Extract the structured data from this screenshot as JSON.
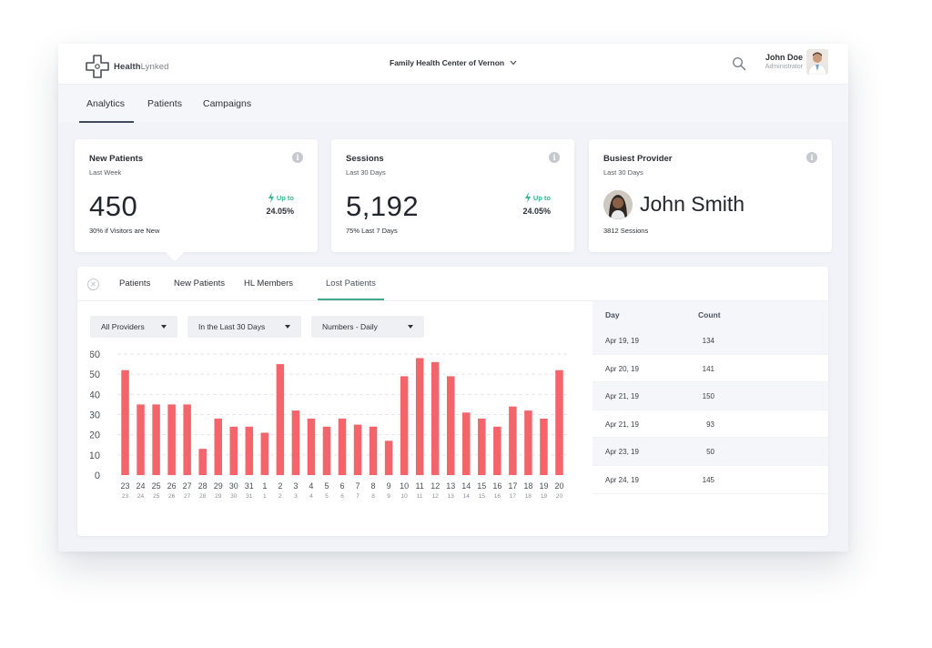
{
  "app": {
    "logo_bold": "Health",
    "logo_light": "Lynked",
    "location": "Family Health Center of Vernon",
    "user": {
      "name": "John Doe",
      "role": "Administrator"
    }
  },
  "nav": {
    "tabs": [
      {
        "label": "Analytics",
        "active": true
      },
      {
        "label": "Patients",
        "active": false
      },
      {
        "label": "Campaigns",
        "active": false
      }
    ]
  },
  "cards": {
    "new_patients": {
      "title": "New Patients",
      "period": "Last Week",
      "value": "450",
      "trend_label": "Up to",
      "trend_value": "24.05%",
      "footnote": "30% if Visitors are New"
    },
    "sessions": {
      "title": "Sessions",
      "period": "Last 30 Days",
      "value": "5,192",
      "trend_label": "Up to",
      "trend_value": "24.05%",
      "footnote": "75% Last 7 Days"
    },
    "busiest_provider": {
      "title": "Busiest Provider",
      "period": "Last 30 Days",
      "name": "John Smith",
      "footnote": "3812 Sessions"
    },
    "info_glyph": "i"
  },
  "panel": {
    "close_glyph": "✕",
    "subtabs": [
      {
        "label": "Patients",
        "active": false
      },
      {
        "label": "New Patients",
        "active": false
      },
      {
        "label": "HL Members",
        "active": false
      },
      {
        "label": "Lost Patients",
        "active": true
      }
    ],
    "filters": {
      "providers": "All Providers",
      "range": "In the Last 30 Days",
      "mode": "Numbers - Daily"
    }
  },
  "chart_data": {
    "type": "bar",
    "categories": [
      "23",
      "24",
      "25",
      "26",
      "27",
      "28",
      "29",
      "30",
      "31",
      "1",
      "2",
      "3",
      "4",
      "5",
      "6",
      "7",
      "8",
      "9",
      "10",
      "11",
      "12",
      "13",
      "14",
      "15",
      "16",
      "17",
      "18",
      "19",
      "20"
    ],
    "values": [
      52,
      35,
      35,
      35,
      35,
      13,
      28,
      24,
      24,
      21,
      55,
      32,
      28,
      24,
      28,
      25,
      24,
      17,
      49,
      58,
      56,
      49,
      31,
      28,
      24,
      34,
      32,
      28,
      52
    ],
    "ylim": [
      0,
      60
    ],
    "yticks": [
      0,
      10,
      20,
      30,
      40,
      50,
      60
    ],
    "grid": true,
    "bar_color": "#f4656b"
  },
  "table": {
    "headers": {
      "day": "Day",
      "count": "Count"
    },
    "rows": [
      {
        "day": "Apr 19, 19",
        "count": "134"
      },
      {
        "day": "Apr 20, 19",
        "count": "141"
      },
      {
        "day": "Apr 21, 19",
        "count": "150"
      },
      {
        "day": "Apr 21, 19",
        "count": "93"
      },
      {
        "day": "Apr 23, 19",
        "count": "50"
      },
      {
        "day": "Apr 24, 19",
        "count": "145"
      }
    ]
  },
  "colors": {
    "accent_green": "#31b98a",
    "bar_red": "#f4656b",
    "active_tab_underline": "#3e4a5a"
  },
  "icons": {
    "logo": "cross-logo-icon",
    "search": "search-icon",
    "chevron": "chevron-down-icon",
    "trend": "lightning-bolt-icon",
    "info": "info-icon",
    "close": "close-circle-icon"
  }
}
